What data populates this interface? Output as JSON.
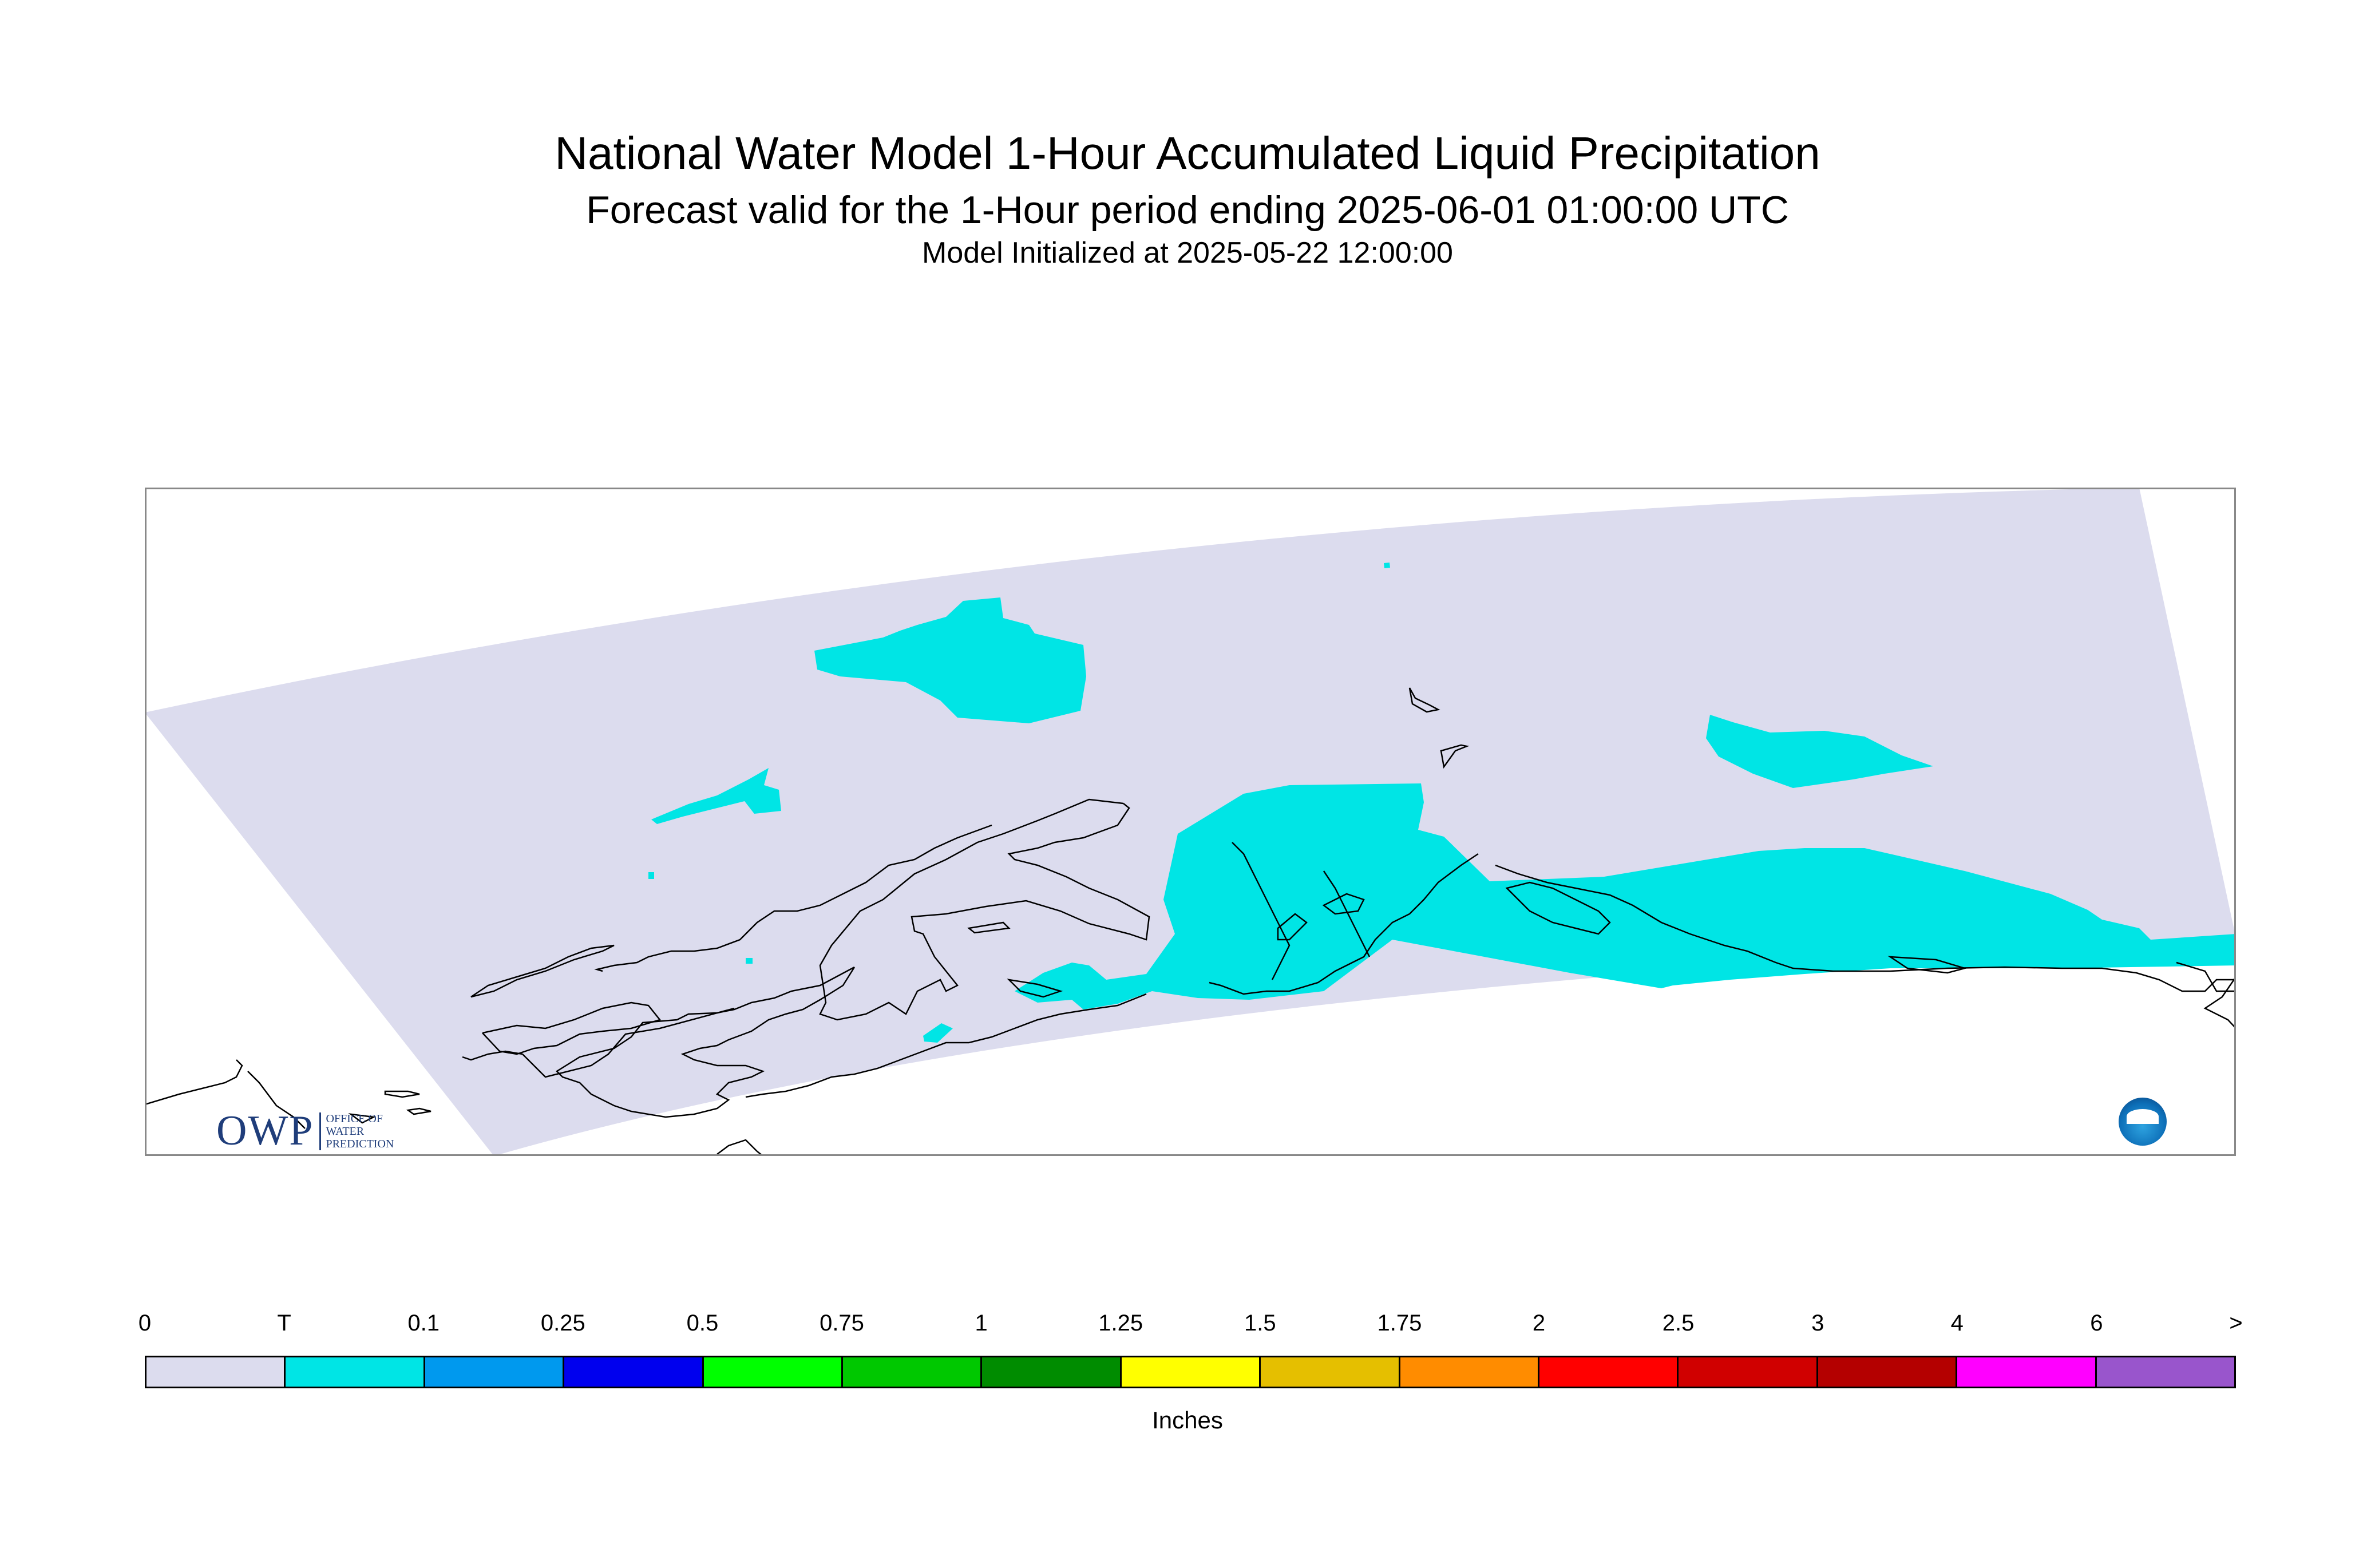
{
  "title": "National Water Model 1-Hour Accumulated Liquid Precipitation",
  "subtitle": "Forecast valid for the 1-Hour period ending 2025-06-01 01:00:00 UTC",
  "init_line": "Model Initialized at 2025-05-22 12:00:00",
  "legend": {
    "tick_labels": [
      "0",
      "T",
      "0.1",
      "0.25",
      "0.5",
      "0.75",
      "1",
      "1.25",
      "1.5",
      "1.75",
      "2",
      "2.5",
      "3",
      "4",
      "6",
      ">"
    ],
    "colors": [
      "#dcdcee",
      "#00e5e5",
      "#0099ee",
      "#0000ee",
      "#00ff00",
      "#00c800",
      "#008c00",
      "#ffff00",
      "#e5bf00",
      "#ff8c00",
      "#ff0000",
      "#d00000",
      "#b40000",
      "#ff00ff",
      "#9955cc"
    ],
    "units_label": "Inches"
  },
  "map": {
    "domain_fill": "#dcdcee",
    "precip_fill": "#00e5e5",
    "coast_color": "#000000",
    "frame_color": "#888888"
  },
  "logos": {
    "owp_mark": "OWP",
    "owp_text_lines": [
      "OFFICE OF",
      "WATER",
      "PREDICTION"
    ],
    "noaa": "noaa-logo-icon"
  }
}
